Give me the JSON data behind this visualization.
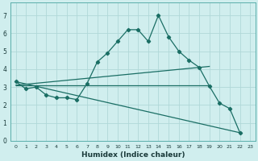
{
  "xlabel": "Humidex (Indice chaleur)",
  "xlim": [
    -0.5,
    23.5
  ],
  "ylim": [
    0,
    7.7
  ],
  "xticks": [
    0,
    1,
    2,
    3,
    4,
    5,
    6,
    7,
    8,
    9,
    10,
    11,
    12,
    13,
    14,
    15,
    16,
    17,
    18,
    19,
    20,
    21,
    22,
    23
  ],
  "yticks": [
    0,
    1,
    2,
    3,
    4,
    5,
    6,
    7
  ],
  "bg_color": "#d0eeee",
  "grid_color": "#b0d8d8",
  "line_color": "#1a6e64",
  "line1_x": [
    0,
    1,
    2,
    3,
    4,
    5,
    6,
    7,
    8,
    9,
    10,
    11,
    12,
    13,
    14,
    15,
    16,
    17,
    18,
    19,
    20,
    21,
    22
  ],
  "line1_y": [
    3.3,
    2.9,
    3.0,
    2.55,
    2.4,
    2.4,
    2.3,
    3.2,
    4.4,
    4.9,
    5.55,
    6.2,
    6.2,
    5.55,
    7.0,
    5.8,
    5.0,
    4.5,
    4.1,
    3.05,
    2.1,
    1.8,
    0.45
  ],
  "line2_x": [
    0,
    19
  ],
  "line2_y": [
    3.1,
    3.1
  ],
  "line3_x": [
    0,
    19
  ],
  "line3_y": [
    3.1,
    4.15
  ],
  "line4_x": [
    0,
    22
  ],
  "line4_y": [
    3.3,
    0.45
  ]
}
